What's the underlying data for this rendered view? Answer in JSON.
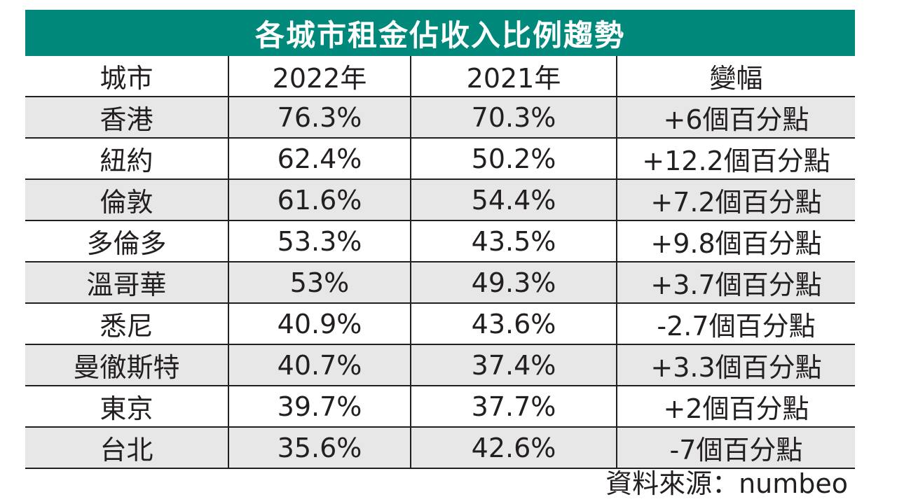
{
  "chart_data": {
    "type": "table",
    "title": "各城市租金佔收入比例趨勢",
    "columns": [
      "城市",
      "2022年",
      "2021年",
      "變幅"
    ],
    "rows": [
      {
        "city": "香港",
        "y2022": "76.3%",
        "y2021": "70.3%",
        "change": "+6個百分點"
      },
      {
        "city": "紐約",
        "y2022": "62.4%",
        "y2021": "50.2%",
        "change": "+12.2個百分點"
      },
      {
        "city": "倫敦",
        "y2022": "61.6%",
        "y2021": "54.4%",
        "change": "+7.2個百分點"
      },
      {
        "city": "多倫多",
        "y2022": "53.3%",
        "y2021": "43.5%",
        "change": "+9.8個百分點"
      },
      {
        "city": "溫哥華",
        "y2022": "53%",
        "y2021": "49.3%",
        "change": "+3.7個百分點"
      },
      {
        "city": "悉尼",
        "y2022": "40.9%",
        "y2021": "43.6%",
        "change": "-2.7個百分點"
      },
      {
        "city": "曼徹斯特",
        "y2022": "40.7%",
        "y2021": "37.4%",
        "change": "+3.3個百分點"
      },
      {
        "city": "東京",
        "y2022": "39.7%",
        "y2021": "37.7%",
        "change": "+2個百分點"
      },
      {
        "city": "台北",
        "y2022": "35.6%",
        "y2021": "42.6%",
        "change": "-7個百分點"
      }
    ],
    "source": "資料來源：numbeo"
  },
  "colors": {
    "title_bg": "#00897b",
    "title_text": "#ffffff",
    "stripe_row": "#e7e7e8",
    "grid_line": "#231f20"
  }
}
